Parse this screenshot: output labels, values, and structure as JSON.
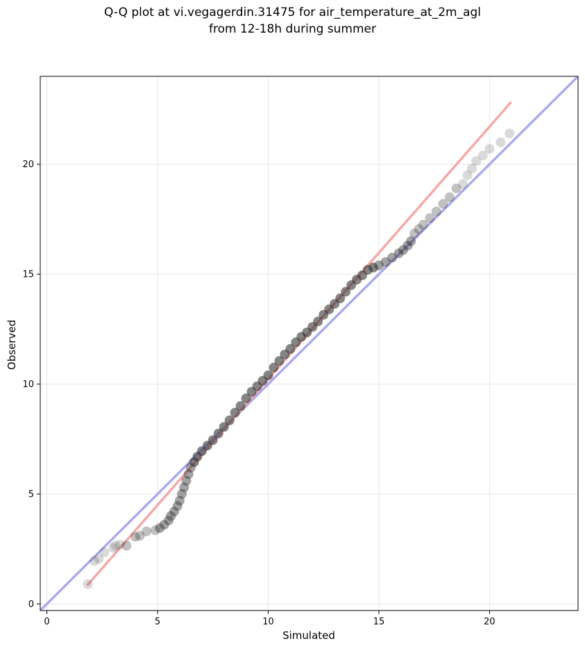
{
  "title_lines": [
    "Q-Q plot at vi.vegagerdin.31475 for air_temperature_at_2m_agl",
    "from 12-18h during summer"
  ],
  "chart_data": {
    "type": "scatter",
    "title": "Q-Q plot at vi.vegagerdin.31475 for air_temperature_at_2m_agl\nfrom 12-18h during summer",
    "xlabel": "Simulated",
    "ylabel": "Observed",
    "xlim": [
      -0.3,
      24.0
    ],
    "ylim": [
      -0.3,
      24.0
    ],
    "xticks": [
      0,
      5,
      10,
      15,
      20
    ],
    "yticks": [
      0,
      5,
      10,
      15,
      20
    ],
    "grid": true,
    "series": [
      {
        "kind": "quantile_points",
        "color": "#333333",
        "points": [
          [
            1.85,
            0.9
          ],
          [
            2.15,
            1.95
          ],
          [
            2.35,
            2.05
          ],
          [
            2.6,
            2.35
          ],
          [
            3.0,
            2.55
          ],
          [
            3.1,
            2.65
          ],
          [
            3.3,
            2.7
          ],
          [
            3.6,
            2.65
          ],
          [
            4.0,
            3.05
          ],
          [
            4.2,
            3.1
          ],
          [
            4.5,
            3.3
          ],
          [
            4.9,
            3.35
          ],
          [
            5.1,
            3.45
          ],
          [
            5.3,
            3.6
          ],
          [
            5.5,
            3.8
          ],
          [
            5.6,
            4.0
          ],
          [
            5.75,
            4.2
          ],
          [
            5.9,
            4.45
          ],
          [
            6.0,
            4.7
          ],
          [
            6.1,
            5.0
          ],
          [
            6.2,
            5.3
          ],
          [
            6.3,
            5.6
          ],
          [
            6.4,
            5.9
          ],
          [
            6.5,
            6.2
          ],
          [
            6.65,
            6.45
          ],
          [
            6.8,
            6.7
          ],
          [
            7.0,
            6.95
          ],
          [
            7.25,
            7.2
          ],
          [
            7.5,
            7.45
          ],
          [
            7.75,
            7.75
          ],
          [
            8.0,
            8.05
          ],
          [
            8.25,
            8.35
          ],
          [
            8.5,
            8.7
          ],
          [
            8.75,
            9.0
          ],
          [
            9.0,
            9.35
          ],
          [
            9.25,
            9.65
          ],
          [
            9.5,
            9.9
          ],
          [
            9.75,
            10.15
          ],
          [
            10.0,
            10.4
          ],
          [
            10.25,
            10.75
          ],
          [
            10.5,
            11.05
          ],
          [
            10.75,
            11.35
          ],
          [
            11.0,
            11.6
          ],
          [
            11.25,
            11.9
          ],
          [
            11.5,
            12.15
          ],
          [
            11.75,
            12.35
          ],
          [
            12.0,
            12.6
          ],
          [
            12.25,
            12.85
          ],
          [
            12.5,
            13.15
          ],
          [
            12.75,
            13.4
          ],
          [
            13.0,
            13.65
          ],
          [
            13.25,
            13.9
          ],
          [
            13.5,
            14.2
          ],
          [
            13.75,
            14.5
          ],
          [
            14.0,
            14.75
          ],
          [
            14.25,
            14.95
          ],
          [
            14.5,
            15.2
          ],
          [
            14.75,
            15.3
          ],
          [
            15.0,
            15.4
          ],
          [
            15.3,
            15.55
          ],
          [
            15.6,
            15.75
          ],
          [
            15.9,
            15.95
          ],
          [
            16.1,
            16.1
          ],
          [
            16.3,
            16.3
          ],
          [
            16.45,
            16.5
          ],
          [
            16.6,
            16.85
          ],
          [
            16.8,
            17.05
          ],
          [
            17.0,
            17.25
          ],
          [
            17.3,
            17.55
          ],
          [
            17.6,
            17.85
          ],
          [
            17.9,
            18.2
          ],
          [
            18.2,
            18.5
          ],
          [
            18.5,
            18.9
          ],
          [
            18.8,
            19.1
          ],
          [
            19.0,
            19.5
          ],
          [
            19.2,
            19.8
          ],
          [
            19.4,
            20.15
          ],
          [
            19.7,
            20.4
          ],
          [
            20.0,
            20.7
          ],
          [
            20.5,
            21.0
          ],
          [
            20.9,
            21.4
          ]
        ]
      },
      {
        "kind": "one_to_one_line",
        "color": "#aaaaee",
        "points": [
          [
            -0.3,
            -0.3
          ],
          [
            24.0,
            24.0
          ]
        ]
      },
      {
        "kind": "fit_line",
        "color": "#f5a8a8",
        "points": [
          [
            1.85,
            0.88
          ],
          [
            20.95,
            22.8
          ]
        ]
      }
    ]
  }
}
